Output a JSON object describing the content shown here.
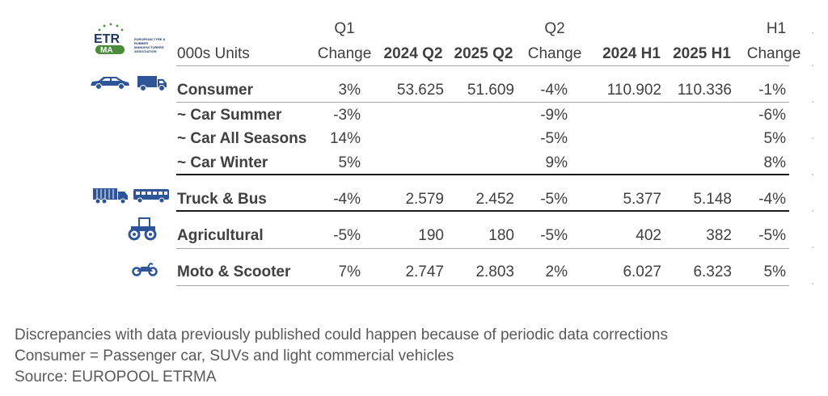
{
  "logo": {
    "name": "ETRMA logo",
    "text": "ETRMA",
    "tagline": "EUROPEAN TYRE & RUBBER MANUFACTURERS' ASSOCIATION"
  },
  "header": {
    "units": "000s Units",
    "q1_group": "Q1",
    "q1_change": "Change",
    "q2_2024": "2024 Q2",
    "q2_2025": "2025 Q2",
    "q2_group": "Q2",
    "q2_change": "Change",
    "h1_2024": "2024 H1",
    "h1_2025": "2025 H1",
    "h1_group": "H1",
    "h1_change": "Change"
  },
  "rows": [
    {
      "label": "Consumer",
      "q1": "3%",
      "q2_2024": "53.625",
      "q2_2025": "51.609",
      "q2_change": "-4%",
      "h1_2024": "110.902",
      "h1_2025": "110.336",
      "h1_change": "-1%"
    },
    {
      "label": "~ Car Summer",
      "q1": "-3%",
      "q2_2024": "",
      "q2_2025": "",
      "q2_change": "-9%",
      "h1_2024": "",
      "h1_2025": "",
      "h1_change": "-6%"
    },
    {
      "label": "~ Car All Seasons",
      "q1": "14%",
      "q2_2024": "",
      "q2_2025": "",
      "q2_change": "-5%",
      "h1_2024": "",
      "h1_2025": "",
      "h1_change": "5%"
    },
    {
      "label": "~ Car Winter",
      "q1": "5%",
      "q2_2024": "",
      "q2_2025": "",
      "q2_change": "9%",
      "h1_2024": "",
      "h1_2025": "",
      "h1_change": "8%"
    },
    {
      "label": "Truck & Bus",
      "q1": "-4%",
      "q2_2024": "2.579",
      "q2_2025": "2.452",
      "q2_change": "-5%",
      "h1_2024": "5.377",
      "h1_2025": "5.148",
      "h1_change": "-4%"
    },
    {
      "label": "Agricultural",
      "q1": "-5%",
      "q2_2024": "190",
      "q2_2025": "180",
      "q2_change": "-5%",
      "h1_2024": "402",
      "h1_2025": "382",
      "h1_change": "-5%"
    },
    {
      "label": "Moto & Scooter",
      "q1": "7%",
      "q2_2024": "2.747",
      "q2_2025": "2.803",
      "q2_change": "2%",
      "h1_2024": "6.027",
      "h1_2025": "6.323",
      "h1_change": "5%"
    }
  ],
  "icons": [
    "car-icon",
    "van-icon",
    "truck-icon",
    "bus-icon",
    "tractor-icon",
    "motorcycle-icon"
  ],
  "colors": {
    "icon": "#2e5597",
    "text": "#404040",
    "footer": "#595959"
  },
  "footer": {
    "line1": "Discrepancies with data previously published could happen because of periodic data corrections",
    "line2": "Consumer = Passenger car, SUVs and light commercial vehicles",
    "line3": "Source: EUROPOOL ETRMA"
  },
  "chart_data": {
    "type": "table",
    "columns": [
      "000s Units",
      "Q1 Change",
      "2024 Q2",
      "2025 Q2",
      "Q2 Change",
      "2024 H1",
      "2025 H1",
      "H1 Change"
    ],
    "rows": [
      [
        "Consumer",
        "3%",
        "53.625",
        "51.609",
        "-4%",
        "110.902",
        "110.336",
        "-1%"
      ],
      [
        "~ Car Summer",
        "-3%",
        "",
        "",
        "-9%",
        "",
        "",
        "-6%"
      ],
      [
        "~ Car All Seasons",
        "14%",
        "",
        "",
        "-5%",
        "",
        "",
        "5%"
      ],
      [
        "~ Car Winter",
        "5%",
        "",
        "",
        "9%",
        "",
        "",
        "8%"
      ],
      [
        "Truck & Bus",
        "-4%",
        "2.579",
        "2.452",
        "-5%",
        "5.377",
        "5.148",
        "-4%"
      ],
      [
        "Agricultural",
        "-5%",
        "190",
        "180",
        "-5%",
        "402",
        "382",
        "-5%"
      ],
      [
        "Moto & Scooter",
        "7%",
        "2.747",
        "2.803",
        "2%",
        "6.027",
        "6.323",
        "5%"
      ]
    ]
  }
}
